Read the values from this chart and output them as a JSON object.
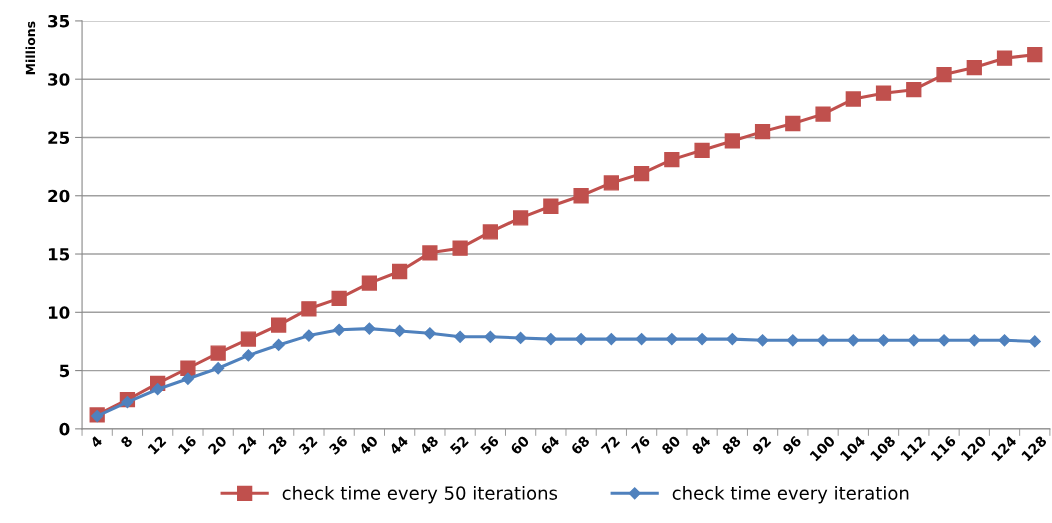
{
  "chart_data": {
    "type": "line",
    "ylabel": "Millions",
    "categories": [
      "4",
      "8",
      "12",
      "16",
      "20",
      "24",
      "28",
      "32",
      "36",
      "40",
      "44",
      "48",
      "52",
      "56",
      "60",
      "64",
      "68",
      "72",
      "76",
      "80",
      "84",
      "88",
      "92",
      "96",
      "100",
      "104",
      "108",
      "112",
      "116",
      "120",
      "124",
      "128"
    ],
    "series": [
      {
        "name": "check time every 50 iterations",
        "color": "#c0504d",
        "marker": "square",
        "values": [
          1.2,
          2.5,
          3.9,
          5.2,
          6.5,
          7.7,
          8.9,
          10.3,
          11.2,
          12.5,
          13.5,
          15.1,
          15.5,
          16.9,
          18.1,
          19.1,
          20.0,
          21.1,
          21.9,
          23.1,
          23.9,
          24.7,
          25.5,
          26.2,
          27.0,
          28.3,
          28.8,
          29.1,
          30.4,
          31.0,
          31.8,
          32.1
        ]
      },
      {
        "name": "check time every iteration",
        "color": "#4f81bd",
        "marker": "diamond",
        "values": [
          1.1,
          2.3,
          3.4,
          4.3,
          5.2,
          6.3,
          7.2,
          8.0,
          8.5,
          8.6,
          8.4,
          8.2,
          7.9,
          7.9,
          7.8,
          7.7,
          7.7,
          7.7,
          7.7,
          7.7,
          7.7,
          7.7,
          7.6,
          7.6,
          7.6,
          7.6,
          7.6,
          7.6,
          7.6,
          7.6,
          7.6,
          7.5
        ]
      }
    ],
    "ylim": [
      0,
      35
    ],
    "yticks": [
      0,
      5,
      10,
      15,
      20,
      25,
      30,
      35
    ],
    "grid": "y",
    "legend": "bottom",
    "line_style": "solid"
  }
}
